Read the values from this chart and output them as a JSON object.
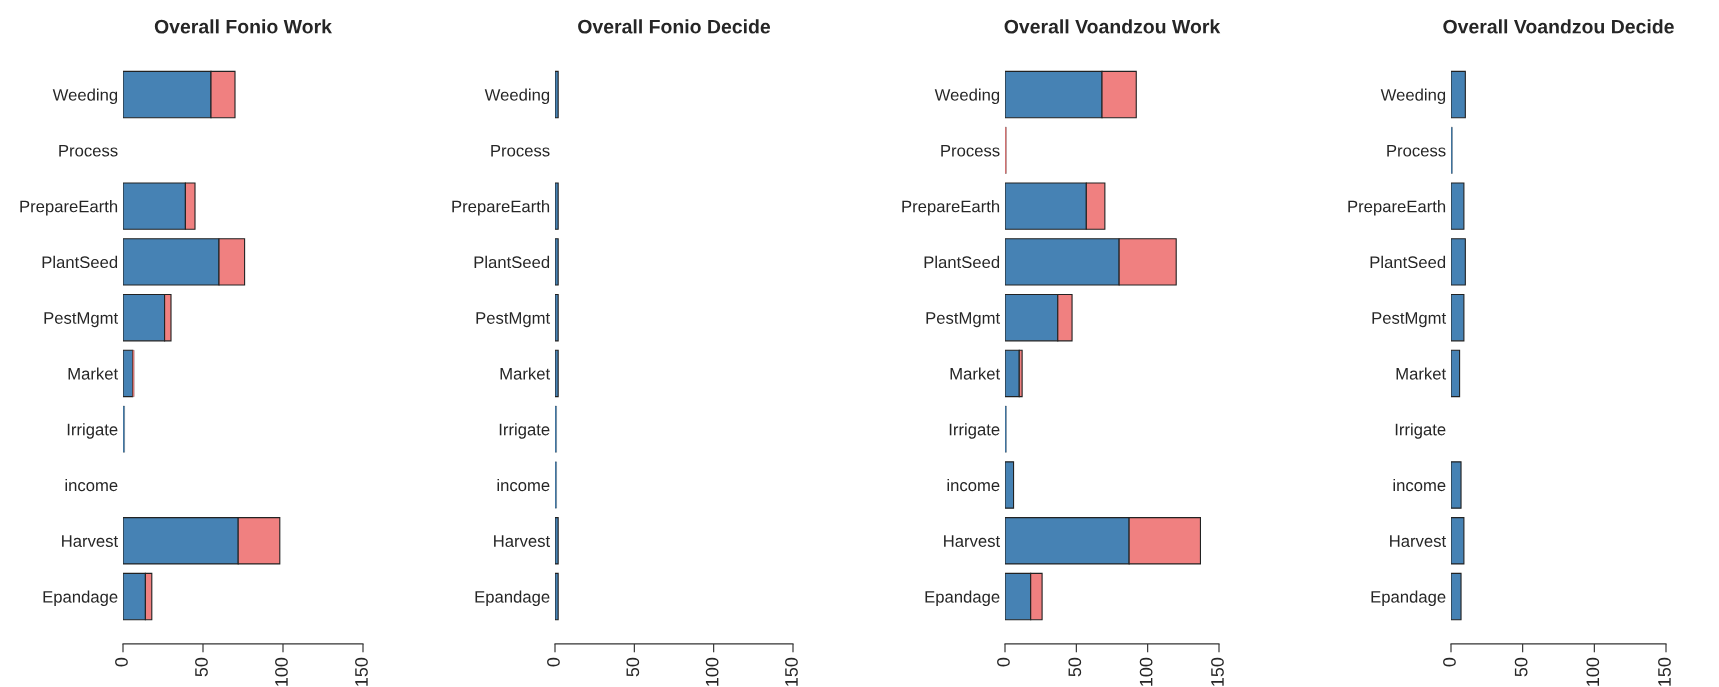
{
  "chart_data": [
    {
      "type": "bar",
      "title": "Overall Fonio Work",
      "orientation": "horizontal",
      "stacked": true,
      "categories": [
        "Weeding",
        "Process",
        "PrepareEarth",
        "PlantSeed",
        "PestMgmt",
        "Market",
        "Irrigate",
        "income",
        "Harvest",
        "Epandage"
      ],
      "series": [
        {
          "color": "#4682b4",
          "values": [
            55,
            0,
            39,
            60,
            26,
            6,
            1,
            0,
            72,
            14
          ]
        },
        {
          "color": "#f08080",
          "values": [
            15,
            0,
            6,
            16,
            4,
            1,
            0,
            0,
            26,
            4
          ]
        }
      ],
      "xlim": [
        0,
        150
      ],
      "xticks": [
        0,
        50,
        100,
        150
      ],
      "grid": false
    },
    {
      "type": "bar",
      "title": "Overall Fonio Decide",
      "orientation": "horizontal",
      "stacked": true,
      "categories": [
        "Weeding",
        "Process",
        "PrepareEarth",
        "PlantSeed",
        "PestMgmt",
        "Market",
        "Irrigate",
        "income",
        "Harvest",
        "Epandage"
      ],
      "series": [
        {
          "color": "#4682b4",
          "values": [
            2,
            0,
            2,
            2,
            2,
            2,
            1,
            1,
            2,
            2
          ]
        }
      ],
      "xlim": [
        0,
        150
      ],
      "xticks": [
        0,
        50,
        100,
        150
      ],
      "grid": false
    },
    {
      "type": "bar",
      "title": "Overall Voandzou Work",
      "orientation": "horizontal",
      "stacked": true,
      "categories": [
        "Weeding",
        "Process",
        "PrepareEarth",
        "PlantSeed",
        "PestMgmt",
        "Market",
        "Irrigate",
        "income",
        "Harvest",
        "Epandage"
      ],
      "series": [
        {
          "color": "#4682b4",
          "values": [
            68,
            0,
            57,
            80,
            37,
            10,
            1,
            6,
            87,
            18
          ]
        },
        {
          "color": "#f08080",
          "values": [
            24,
            1,
            13,
            40,
            10,
            2,
            0,
            0,
            50,
            8
          ]
        }
      ],
      "xlim": [
        0,
        150
      ],
      "xticks": [
        0,
        50,
        100,
        150
      ],
      "grid": false
    },
    {
      "type": "bar",
      "title": "Overall Voandzou Decide",
      "orientation": "horizontal",
      "stacked": true,
      "categories": [
        "Weeding",
        "Process",
        "PrepareEarth",
        "PlantSeed",
        "PestMgmt",
        "Market",
        "Irrigate",
        "income",
        "Harvest",
        "Epandage"
      ],
      "series": [
        {
          "color": "#4682b4",
          "values": [
            10,
            1,
            9,
            10,
            9,
            6,
            0,
            7,
            9,
            7
          ]
        }
      ],
      "xlim": [
        0,
        150
      ],
      "xticks": [
        0,
        50,
        100,
        150
      ],
      "grid": false
    }
  ]
}
